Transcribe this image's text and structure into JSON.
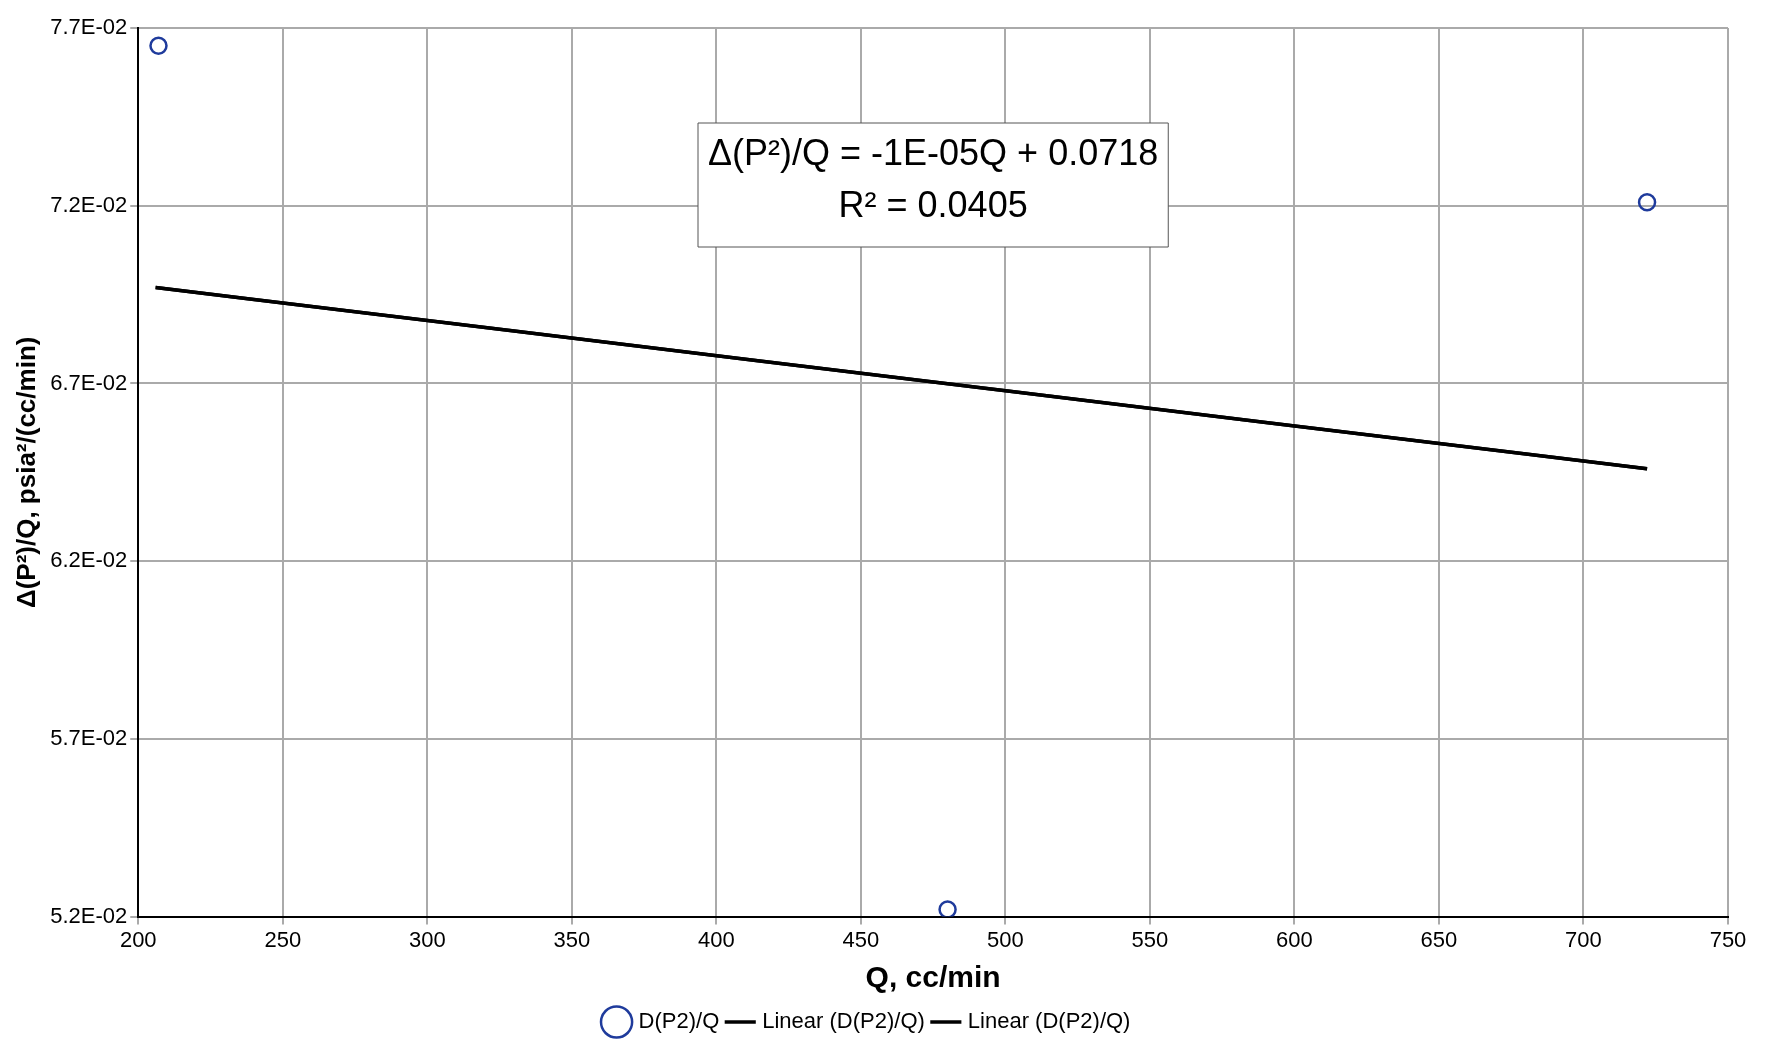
{
  "chart_data": {
    "type": "scatter",
    "xlabel": "Q, cc/min",
    "ylabel": "Δ(P²)/Q, psia²/(cc/min)",
    "xlim": [
      200,
      750
    ],
    "xticks": [
      200,
      250,
      300,
      350,
      400,
      450,
      500,
      550,
      600,
      650,
      700,
      750
    ],
    "ylim": [
      0.052,
      0.077
    ],
    "yticks": [
      {
        "value": 0.052,
        "label": "5.2E-02"
      },
      {
        "value": 0.057,
        "label": "5.7E-02"
      },
      {
        "value": 0.062,
        "label": "6.2E-02"
      },
      {
        "value": 0.067,
        "label": "6.7E-02"
      },
      {
        "value": 0.072,
        "label": "7.2E-02"
      },
      {
        "value": 0.077,
        "label": "7.7E-02"
      }
    ],
    "grid": true,
    "legend": "bottom",
    "annotations": [
      "Δ(P²)/Q = -1E-05Q + 0.0718",
      "R² = 0.0405"
    ],
    "series": [
      {
        "name": "D(P2)/Q",
        "type": "scatter",
        "marker": "circle",
        "color": "#1f3b9c",
        "x": [
          207,
          480,
          722
        ],
        "values": [
          0.0765,
          0.0522,
          0.0721
        ]
      },
      {
        "name": "Linear (D(P2)/Q)",
        "type": "line",
        "marker": "none",
        "color": "#000000",
        "x": [
          206,
          722
        ],
        "values": [
          0.0697,
          0.0646
        ]
      },
      {
        "name": "Linear (D(P2)/Q)",
        "type": "line",
        "marker": "none",
        "color": "#000000",
        "x": [
          206,
          722
        ],
        "values": [
          0.0697,
          0.0646
        ]
      }
    ]
  }
}
